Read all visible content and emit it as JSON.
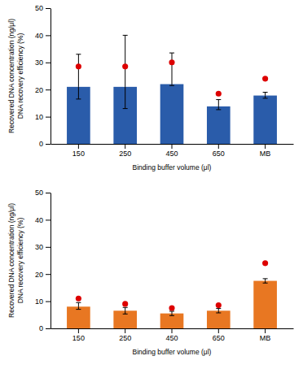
{
  "chart_data": [
    {
      "type": "bar",
      "categories": [
        "150",
        "250",
        "450",
        "650",
        "MB"
      ],
      "series": [
        {
          "type": "bar",
          "color": "#2a5caa",
          "values": [
            21.0,
            21.0,
            22.0,
            13.8,
            17.8
          ],
          "errors_up": [
            12.0,
            19.0,
            11.5,
            2.5,
            1.2
          ],
          "errors_down": [
            4.5,
            8.0,
            0.5,
            1.2,
            1.0
          ]
        },
        {
          "type": "scatter",
          "color": "#dd0000",
          "marker": "circle",
          "values": [
            28.5,
            28.5,
            30.0,
            18.5,
            24.0
          ]
        }
      ],
      "ylabel": "Recovered DNA concentration (ng/μl)\nDNA recovery efficiency (%)",
      "xlabel": "Binding buffer volume (μl)",
      "ylim": [
        0,
        50
      ],
      "yticks": [
        0,
        10,
        20,
        30,
        40,
        50
      ],
      "grid": false
    },
    {
      "type": "bar",
      "categories": [
        "150",
        "250",
        "450",
        "650",
        "MB"
      ],
      "series": [
        {
          "type": "bar",
          "color": "#e87722",
          "values": [
            8.0,
            6.5,
            5.5,
            6.5,
            17.5
          ],
          "errors_up": [
            1.5,
            1.2,
            0.8,
            0.8,
            0.8
          ],
          "errors_down": [
            1.0,
            1.2,
            0.8,
            0.8,
            0.8
          ]
        },
        {
          "type": "scatter",
          "color": "#dd0000",
          "marker": "circle",
          "values": [
            11.0,
            9.0,
            7.5,
            8.5,
            24.0
          ]
        }
      ],
      "ylabel": "Recovered DNA concentration (ng/μl)\nDNA recovery efficiency (%)",
      "xlabel": "Binding buffer volume (μl)",
      "ylim": [
        0,
        50
      ],
      "yticks": [
        0,
        10,
        20,
        30,
        40,
        50
      ],
      "grid": false
    }
  ]
}
